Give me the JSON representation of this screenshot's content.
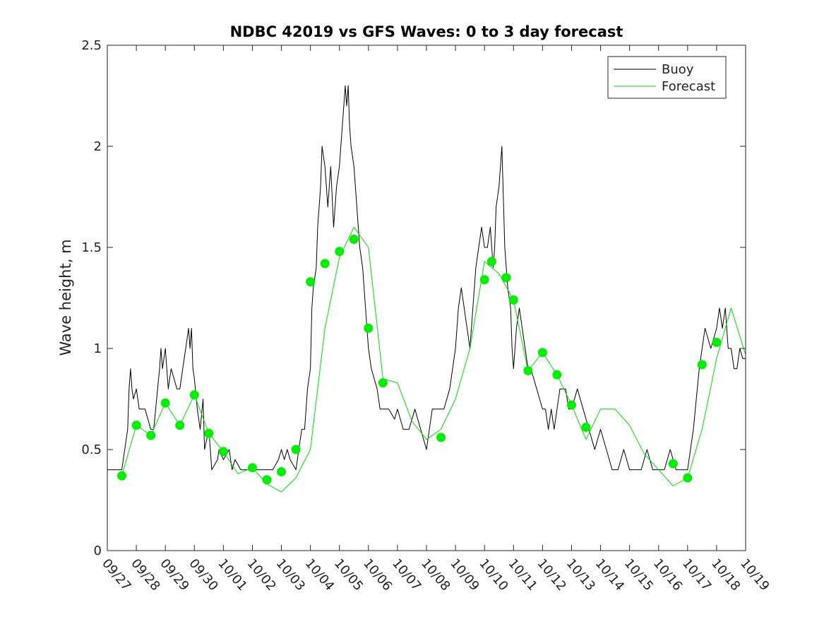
{
  "chart_data": {
    "type": "line",
    "title": "NDBC 42019 vs GFS Waves: 0 to 3 day forecast",
    "xlabel": "",
    "ylabel": "Wave height, m",
    "xlim": [
      0,
      22
    ],
    "ylim": [
      0,
      2.5
    ],
    "x_tick_labels": [
      "09/27",
      "09/28",
      "09/29",
      "09/30",
      "10/01",
      "10/02",
      "10/03",
      "10/04",
      "10/05",
      "10/06",
      "10/07",
      "10/08",
      "10/09",
      "10/10",
      "10/11",
      "10/12",
      "10/13",
      "10/14",
      "10/15",
      "10/16",
      "10/17",
      "10/18",
      "10/19"
    ],
    "y_ticks": [
      0,
      0.5,
      1,
      1.5,
      2,
      2.5
    ],
    "y_tick_labels": [
      "0",
      "0.5",
      "1",
      "1.5",
      "2",
      "2.5"
    ],
    "legend": {
      "position": "top-right",
      "entries": [
        {
          "label": "Buoy",
          "color": "#000000"
        },
        {
          "label": "Forecast",
          "color": "#00dd00"
        }
      ]
    },
    "colors": {
      "buoy": "#000000",
      "forecast": "#00dd00",
      "marker": "#00ee00"
    },
    "series": [
      {
        "name": "Buoy",
        "x": [
          0,
          0.5,
          0.7,
          0.75,
          0.8,
          0.85,
          0.9,
          1.0,
          1.1,
          1.3,
          1.5,
          1.6,
          1.8,
          1.85,
          1.9,
          2.0,
          2.05,
          2.1,
          2.2,
          2.4,
          2.5,
          2.6,
          2.8,
          2.85,
          2.9,
          2.95,
          3.0,
          3.1,
          3.2,
          3.3,
          3.35,
          3.5,
          3.55,
          3.6,
          3.8,
          3.85,
          4.0,
          4.2,
          4.3,
          4.4,
          4.6,
          4.9,
          5.0,
          5.3,
          5.5,
          5.7,
          5.9,
          6.0,
          6.1,
          6.2,
          6.3,
          6.5,
          6.6,
          6.7,
          6.8,
          6.9,
          7.0,
          7.05,
          7.1,
          7.2,
          7.25,
          7.3,
          7.35,
          7.4,
          7.5,
          7.6,
          7.7,
          7.8,
          7.9,
          8.0,
          8.1,
          8.15,
          8.2,
          8.25,
          8.3,
          8.35,
          8.4,
          8.5,
          8.6,
          8.7,
          8.8,
          8.9,
          9.0,
          9.1,
          9.2,
          9.3,
          9.4,
          9.5,
          9.7,
          9.9,
          10.0,
          10.2,
          10.4,
          10.6,
          10.8,
          11.0,
          11.2,
          11.4,
          11.5,
          11.6,
          11.8,
          11.9,
          12.0,
          12.1,
          12.2,
          12.3,
          12.4,
          12.5,
          12.6,
          12.7,
          12.8,
          12.9,
          13.0,
          13.1,
          13.2,
          13.3,
          13.35,
          13.4,
          13.5,
          13.6,
          13.7,
          13.8,
          13.9,
          13.95,
          14.0,
          14.1,
          14.2,
          14.3,
          14.4,
          14.5,
          14.6,
          14.8,
          15.0,
          15.1,
          15.2,
          15.3,
          15.4,
          15.5,
          15.6,
          15.7,
          15.8,
          15.9,
          16.0,
          16.2,
          16.4,
          16.6,
          16.8,
          17.0,
          17.2,
          17.4,
          17.6,
          17.8,
          18.0,
          18.2,
          18.4,
          18.6,
          18.8,
          19.0,
          19.2,
          19.4,
          19.6,
          19.8,
          20.0,
          20.2,
          20.4,
          20.6,
          20.8,
          21.0,
          21.1,
          21.2,
          21.3,
          21.4,
          21.5,
          21.6,
          21.7,
          21.8,
          21.9,
          22.0
        ],
        "y": [
          0.4,
          0.4,
          0.6,
          0.8,
          0.9,
          0.8,
          0.75,
          0.8,
          0.7,
          0.7,
          0.6,
          0.6,
          0.9,
          1.0,
          0.9,
          1.0,
          0.9,
          0.8,
          0.9,
          0.8,
          0.8,
          0.9,
          1.1,
          1.0,
          1.1,
          0.9,
          0.85,
          0.7,
          0.6,
          0.75,
          0.5,
          0.6,
          0.5,
          0.4,
          0.45,
          0.5,
          0.45,
          0.5,
          0.4,
          0.45,
          0.4,
          0.4,
          0.4,
          0.4,
          0.4,
          0.4,
          0.45,
          0.5,
          0.45,
          0.5,
          0.45,
          0.4,
          0.5,
          0.6,
          0.6,
          0.8,
          0.9,
          1.2,
          1.3,
          1.4,
          1.6,
          1.7,
          1.8,
          2.0,
          1.9,
          1.7,
          1.9,
          1.6,
          1.8,
          1.9,
          2.1,
          2.2,
          2.3,
          2.2,
          2.3,
          2.1,
          2.0,
          1.9,
          1.7,
          1.5,
          1.4,
          1.2,
          1.0,
          0.9,
          0.85,
          0.8,
          0.7,
          0.7,
          0.7,
          0.65,
          0.7,
          0.6,
          0.6,
          0.7,
          0.6,
          0.5,
          0.7,
          0.7,
          0.7,
          0.7,
          0.8,
          0.9,
          1.0,
          1.2,
          1.3,
          1.2,
          1.1,
          1.0,
          1.2,
          1.4,
          1.5,
          1.6,
          1.5,
          1.5,
          1.6,
          1.4,
          1.5,
          1.7,
          1.8,
          2.0,
          1.5,
          1.3,
          1.2,
          1.0,
          0.9,
          1.1,
          1.2,
          1.1,
          1.0,
          0.9,
          0.9,
          0.8,
          0.7,
          0.7,
          0.6,
          0.7,
          0.6,
          0.7,
          0.8,
          0.8,
          0.8,
          0.7,
          0.7,
          0.8,
          0.7,
          0.6,
          0.5,
          0.6,
          0.5,
          0.4,
          0.4,
          0.5,
          0.4,
          0.4,
          0.4,
          0.5,
          0.4,
          0.4,
          0.4,
          0.5,
          0.4,
          0.4,
          0.4,
          0.6,
          0.9,
          1.1,
          1.0,
          1.1,
          1.2,
          1.1,
          1.2,
          1.0,
          1.0,
          0.9,
          0.9,
          1.0,
          0.95,
          0.95
        ]
      },
      {
        "name": "Forecast",
        "x": [
          0.5,
          1.0,
          1.5,
          2.0,
          2.5,
          3.0,
          3.5,
          4.0,
          4.5,
          5.0,
          5.5,
          6.0,
          6.5,
          7.0,
          7.5,
          8.0,
          8.5,
          9.0,
          9.5,
          10.0,
          10.5,
          11.0,
          11.5,
          12.0,
          12.5,
          13.0,
          13.5,
          14.0,
          14.5,
          15.0,
          15.5,
          16.0,
          16.5,
          17.0,
          17.5,
          18.0,
          18.5,
          19.0,
          19.5,
          20.0,
          20.5,
          21.0,
          21.5,
          22.0
        ],
        "y": [
          0.37,
          0.62,
          0.57,
          0.73,
          0.62,
          0.77,
          0.58,
          0.49,
          0.38,
          0.41,
          0.33,
          0.29,
          0.36,
          0.5,
          1.1,
          1.45,
          1.6,
          1.5,
          0.85,
          0.83,
          0.64,
          0.55,
          0.6,
          0.75,
          1.0,
          1.43,
          1.37,
          1.24,
          0.89,
          0.98,
          0.87,
          0.72,
          0.55,
          0.7,
          0.7,
          0.62,
          0.48,
          0.4,
          0.32,
          0.36,
          0.6,
          0.95,
          1.2,
          0.97
        ]
      },
      {
        "name": "Forecast markers",
        "x": [
          0.5,
          1.0,
          1.5,
          2.0,
          2.5,
          3.0,
          3.5,
          4.0,
          5.0,
          5.5,
          6.0,
          6.5,
          7.0,
          7.5,
          8.0,
          8.5,
          9.0,
          9.5,
          11.5,
          13.0,
          13.25,
          13.75,
          14.0,
          14.5,
          15.0,
          15.5,
          16.0,
          16.5,
          19.5,
          20.0,
          20.5,
          21.0
        ],
        "y": [
          0.37,
          0.62,
          0.57,
          0.73,
          0.62,
          0.77,
          0.58,
          0.49,
          0.41,
          0.35,
          0.39,
          0.5,
          1.33,
          1.42,
          1.48,
          1.54,
          1.1,
          0.83,
          0.56,
          1.34,
          1.43,
          1.35,
          1.24,
          0.89,
          0.98,
          0.87,
          0.72,
          0.61,
          0.43,
          0.36,
          0.92,
          1.03
        ]
      }
    ]
  }
}
